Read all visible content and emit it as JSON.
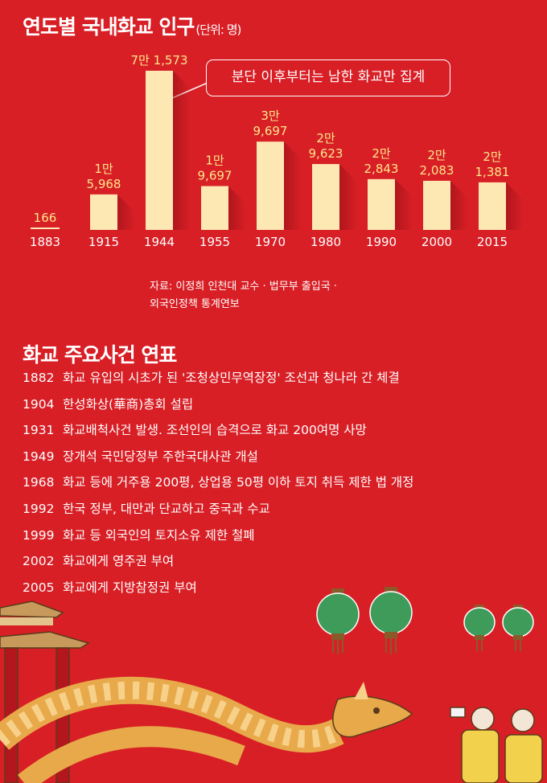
{
  "title": "연도별 국내화교 인구",
  "unit": "(단위: 명)",
  "callout": "분단 이후부터는 남한 화교만 집계",
  "source": [
    "자료: 이정희 인천대 교수 · 법무부 출입국 ·",
    "외국인정책 통계연보"
  ],
  "chart_data": {
    "type": "bar",
    "title": "연도별 국내화교 인구",
    "unit": "(단위: 명)",
    "categories": [
      "1883",
      "1915",
      "1944",
      "1955",
      "1970",
      "1980",
      "1990",
      "2000",
      "2015"
    ],
    "values": [
      166,
      15968,
      71573,
      19697,
      39697,
      29623,
      22843,
      22083,
      21381
    ],
    "labels": [
      [
        "166"
      ],
      [
        "1만",
        "5,968"
      ],
      [
        "7만 1,573"
      ],
      [
        "1만",
        "9,697"
      ],
      [
        "3만",
        "9,697"
      ],
      [
        "2만",
        "9,623"
      ],
      [
        "2만",
        "2,843"
      ],
      [
        "2만",
        "2,083"
      ],
      [
        "2만",
        "1,381"
      ]
    ],
    "colors": {
      "bar": "#fde7b3",
      "label": "#fde68a",
      "background": "#d81f26"
    }
  },
  "timeline_title": "화교 주요사건 연표",
  "timeline": [
    {
      "year": "1882",
      "text": "화교 유입의 시초가 된 '조청상민무역장정' 조선과 청나라 간 체결"
    },
    {
      "year": "1904",
      "text": "한성화상(華商)총회 설립"
    },
    {
      "year": "1931",
      "text": "화교배척사건 발생. 조선인의 습격으로 화교 200여명 사망"
    },
    {
      "year": "1949",
      "text": "장개석 국민당정부 주한국대사관 개설"
    },
    {
      "year": "1968",
      "text": "화교 등에 거주용 200평, 상업용 50평 이하 토지 취득 제한 법 개정"
    },
    {
      "year": "1992",
      "text": "한국 정부, 대만과 단교하고 중국과 수교"
    },
    {
      "year": "1999",
      "text": "화교 등 외국인의 토지소유 제한 철폐"
    },
    {
      "year": "2002",
      "text": "화교에게 영주권 부여"
    },
    {
      "year": "2005",
      "text": "화교에게 지방참정권 부여"
    }
  ]
}
